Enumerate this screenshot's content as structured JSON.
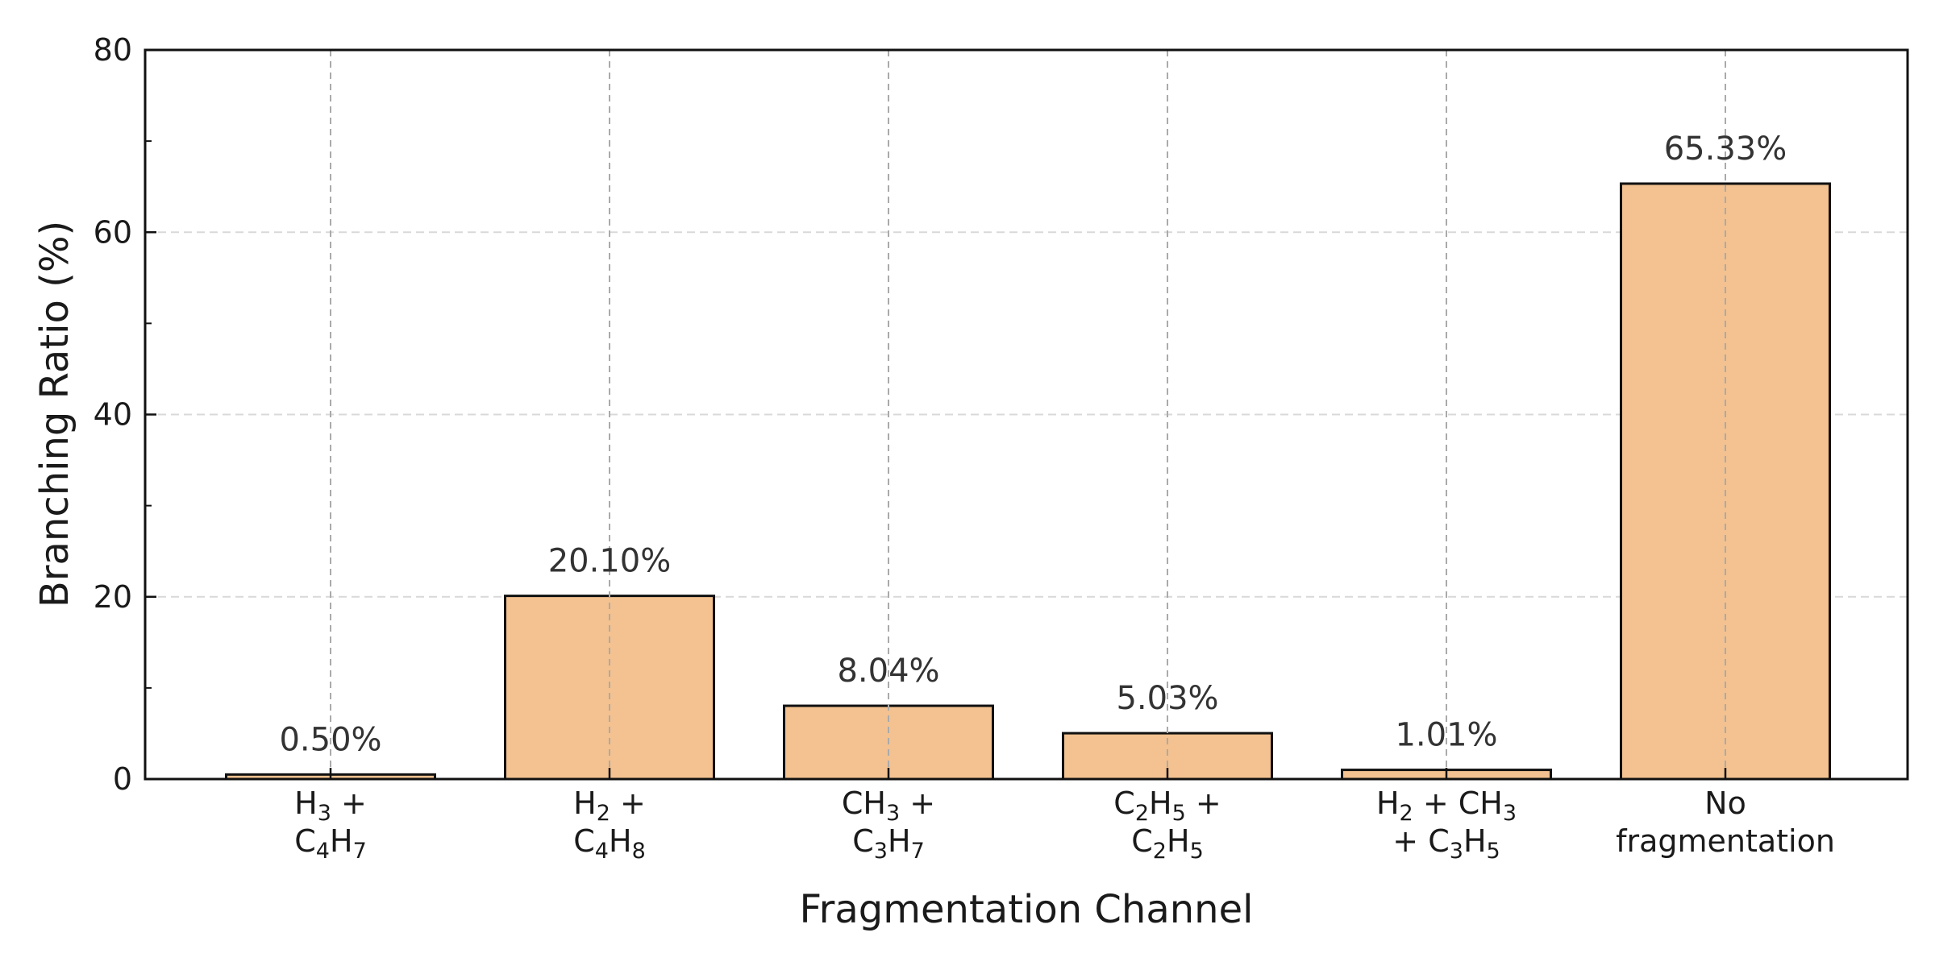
{
  "chart_data": {
    "type": "bar",
    "title": "",
    "xlabel": "Fragmentation Channel",
    "ylabel": "Branching Ratio (%)",
    "ylim": [
      0,
      80
    ],
    "yticks": [
      0,
      20,
      40,
      60,
      80
    ],
    "grid": true,
    "bar_color": "#f3c290",
    "bar_edge_color": "#111111",
    "categories": [
      {
        "lines": [
          [
            {
              "t": "H"
            },
            {
              "t": "3",
              "sub": true
            },
            {
              "t": " +"
            }
          ],
          [
            {
              "t": "C"
            },
            {
              "t": "4",
              "sub": true
            },
            {
              "t": "H"
            },
            {
              "t": "7",
              "sub": true
            }
          ]
        ]
      },
      {
        "lines": [
          [
            {
              "t": "H"
            },
            {
              "t": "2",
              "sub": true
            },
            {
              "t": " +"
            }
          ],
          [
            {
              "t": "C"
            },
            {
              "t": "4",
              "sub": true
            },
            {
              "t": "H"
            },
            {
              "t": "8",
              "sub": true
            }
          ]
        ]
      },
      {
        "lines": [
          [
            {
              "t": "CH"
            },
            {
              "t": "3",
              "sub": true
            },
            {
              "t": " +"
            }
          ],
          [
            {
              "t": "C"
            },
            {
              "t": "3",
              "sub": true
            },
            {
              "t": "H"
            },
            {
              "t": "7",
              "sub": true
            }
          ]
        ]
      },
      {
        "lines": [
          [
            {
              "t": "C"
            },
            {
              "t": "2",
              "sub": true
            },
            {
              "t": "H"
            },
            {
              "t": "5",
              "sub": true
            },
            {
              "t": " +"
            }
          ],
          [
            {
              "t": "C"
            },
            {
              "t": "2",
              "sub": true
            },
            {
              "t": "H"
            },
            {
              "t": "5",
              "sub": true
            }
          ]
        ]
      },
      {
        "lines": [
          [
            {
              "t": "H"
            },
            {
              "t": "2",
              "sub": true
            },
            {
              "t": " + CH"
            },
            {
              "t": "3",
              "sub": true
            }
          ],
          [
            {
              "t": "+ C"
            },
            {
              "t": "3",
              "sub": true
            },
            {
              "t": "H"
            },
            {
              "t": "5",
              "sub": true
            }
          ]
        ]
      },
      {
        "lines": [
          [
            {
              "t": "No"
            }
          ],
          [
            {
              "t": "fragmentation"
            }
          ]
        ]
      }
    ],
    "values": [
      0.5,
      20.1,
      8.04,
      5.03,
      1.01,
      65.33
    ],
    "value_labels": [
      "0.50%",
      "20.10%",
      "8.04%",
      "5.03%",
      "1.01%",
      "65.33%"
    ]
  }
}
